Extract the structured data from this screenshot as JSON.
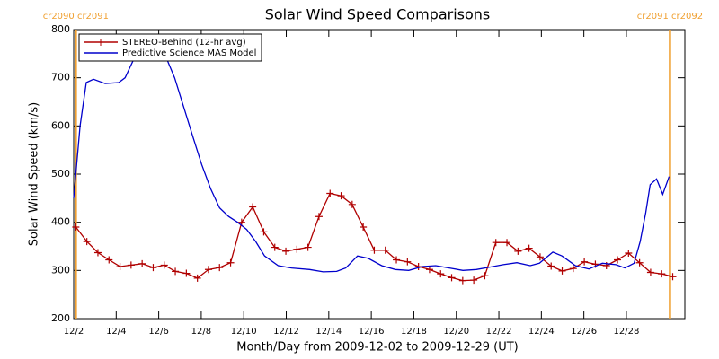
{
  "chart_data": {
    "type": "line",
    "title": "Solar Wind Speed Comparisons",
    "x_label": "Month/Day from 2009-12-02 to 2009-12-29 (UT)",
    "y_label": "Solar Wind Speed (km/s)",
    "xlim": [
      0,
      28.75
    ],
    "ylim": [
      200,
      800
    ],
    "xticks": [
      {
        "value": 0,
        "label": "12/2"
      },
      {
        "value": 2,
        "label": "12/4"
      },
      {
        "value": 4,
        "label": "12/6"
      },
      {
        "value": 6,
        "label": "12/8"
      },
      {
        "value": 8,
        "label": "12/10"
      },
      {
        "value": 10,
        "label": "12/12"
      },
      {
        "value": 12,
        "label": "12/14"
      },
      {
        "value": 14,
        "label": "12/16"
      },
      {
        "value": 16,
        "label": "12/18"
      },
      {
        "value": 18,
        "label": "12/20"
      },
      {
        "value": 20,
        "label": "12/22"
      },
      {
        "value": 22,
        "label": "12/24"
      },
      {
        "value": 24,
        "label": "12/26"
      },
      {
        "value": 26,
        "label": "12/28"
      }
    ],
    "yticks": [
      200,
      300,
      400,
      500,
      600,
      700,
      800
    ],
    "legend": "upper left",
    "annotations": [
      {
        "text": "cr2090 cr2091",
        "x": 0.1,
        "color": "#f0a030"
      },
      {
        "text": "cr2091 cr2092",
        "x": 28.05,
        "color": "#f0a030"
      }
    ],
    "series": [
      {
        "name": "STEREO-Behind (12-hr avg)",
        "color": "#b00000",
        "marker": "+",
        "x": [
          0.1,
          0.62,
          1.14,
          1.66,
          2.18,
          2.7,
          3.22,
          3.74,
          4.26,
          4.78,
          5.3,
          5.82,
          6.34,
          6.86,
          7.38,
          7.9,
          8.42,
          8.94,
          9.46,
          9.98,
          10.5,
          11.02,
          11.54,
          12.06,
          12.58,
          13.1,
          13.62,
          14.14,
          14.66,
          15.18,
          15.7,
          16.22,
          16.74,
          17.26,
          17.78,
          18.3,
          18.82,
          19.34,
          19.86,
          20.38,
          20.9,
          21.42,
          21.94,
          22.46,
          22.98,
          23.5,
          24.02,
          24.54,
          25.06,
          25.58,
          26.1,
          26.62,
          27.14,
          27.66,
          28.18
        ],
        "values": [
          390,
          360,
          337,
          322,
          308,
          311,
          314,
          306,
          311,
          298,
          294,
          284,
          302,
          306,
          316,
          400,
          432,
          380,
          348,
          340,
          344,
          348,
          412,
          460,
          455,
          437,
          390,
          342,
          342,
          322,
          318,
          308,
          302,
          293,
          285,
          279,
          280,
          289,
          358,
          358,
          340,
          346,
          328,
          309,
          299,
          304,
          318,
          313,
          310,
          322,
          336,
          316,
          296,
          293,
          287
        ]
      },
      {
        "name": "Predictive Science MAS Model",
        "color": "#0000cc",
        "x": [
          0,
          0.3,
          0.59,
          0.93,
          1.48,
          2.12,
          2.42,
          2.84,
          3.26,
          3.69,
          4.32,
          4.75,
          5.17,
          5.59,
          6.02,
          6.44,
          6.86,
          7.29,
          7.71,
          8.14,
          8.56,
          8.98,
          9.62,
          10.25,
          11.1,
          11.74,
          12.37,
          12.8,
          13.35,
          13.86,
          14.49,
          15.13,
          15.76,
          16.4,
          17.03,
          17.67,
          18.31,
          18.94,
          19.58,
          20.21,
          20.85,
          21.48,
          21.91,
          22.54,
          22.97,
          23.6,
          24.24,
          24.87,
          25.51,
          25.93,
          26.36,
          26.65,
          26.91,
          27.12,
          27.42,
          27.71,
          28.01
        ],
        "values": [
          450,
          600,
          690,
          697,
          688,
          690,
          700,
          740,
          750,
          745,
          745,
          700,
          640,
          580,
          520,
          470,
          430,
          412,
          400,
          385,
          360,
          330,
          310,
          305,
          302,
          297,
          298,
          305,
          330,
          325,
          310,
          302,
          300,
          308,
          310,
          305,
          300,
          302,
          307,
          312,
          316,
          310,
          315,
          338,
          330,
          310,
          303,
          315,
          312,
          305,
          315,
          360,
          420,
          478,
          490,
          458,
          495
        ]
      }
    ]
  }
}
